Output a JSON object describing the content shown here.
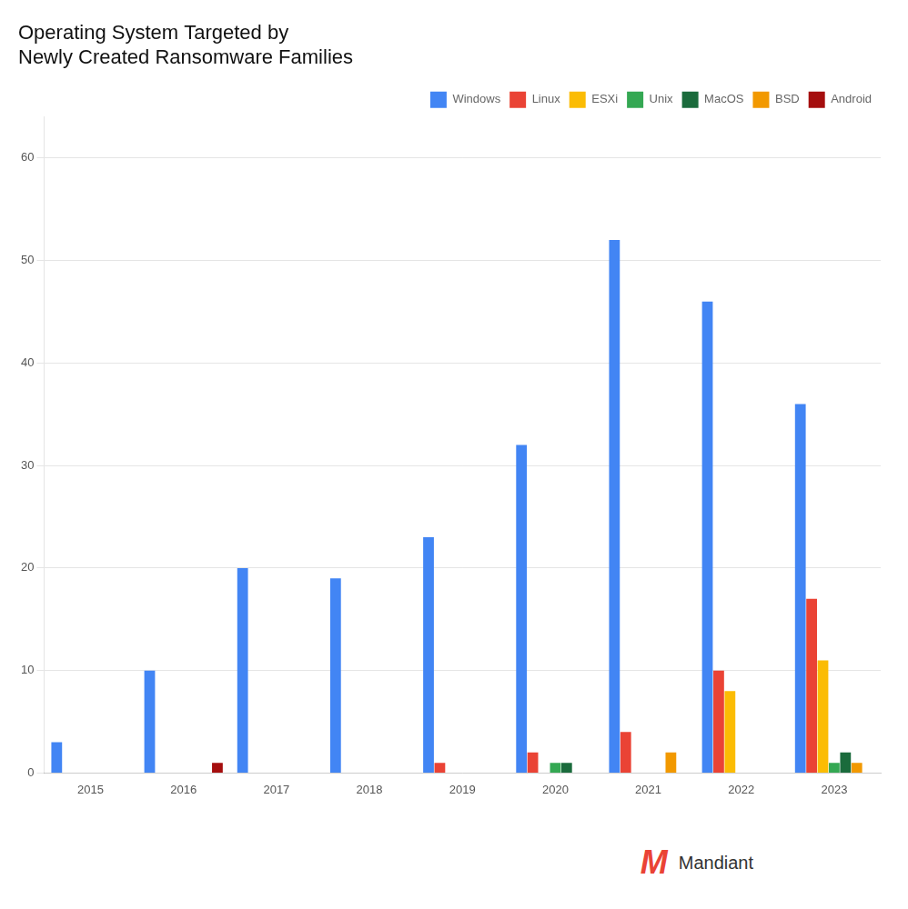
{
  "chart_data": {
    "type": "bar",
    "title": "Operating System Targeted by\nNewly Created Ransomware Families",
    "categories": [
      "2015",
      "2016",
      "2017",
      "2018",
      "2019",
      "2020",
      "2021",
      "2022",
      "2023"
    ],
    "series": [
      {
        "name": "Windows",
        "color": "#4285F4",
        "values": [
          3,
          10,
          20,
          19,
          23,
          32,
          52,
          46,
          36
        ]
      },
      {
        "name": "Linux",
        "color": "#EA4335",
        "values": [
          0,
          0,
          0,
          0,
          1,
          2,
          4,
          10,
          17
        ]
      },
      {
        "name": "ESXi",
        "color": "#FBBC04",
        "values": [
          0,
          0,
          0,
          0,
          0,
          0,
          0,
          8,
          11
        ]
      },
      {
        "name": "Unix",
        "color": "#34A853",
        "values": [
          0,
          0,
          0,
          0,
          0,
          1,
          0,
          0,
          1
        ]
      },
      {
        "name": "MacOS",
        "color": "#1A6B3C",
        "values": [
          0,
          0,
          0,
          0,
          0,
          1,
          0,
          0,
          2
        ]
      },
      {
        "name": "BSD",
        "color": "#F29900",
        "values": [
          0,
          0,
          0,
          0,
          0,
          0,
          2,
          0,
          1
        ]
      },
      {
        "name": "Android",
        "color": "#A50E0E",
        "values": [
          0,
          1,
          0,
          0,
          0,
          0,
          0,
          0,
          0
        ]
      }
    ],
    "ylim": [
      0,
      64
    ],
    "yticks": [
      0,
      10,
      20,
      30,
      40,
      50,
      60
    ],
    "grid": true,
    "legend": "upper right",
    "annotations": [
      "M",
      "Mandiant"
    ]
  }
}
